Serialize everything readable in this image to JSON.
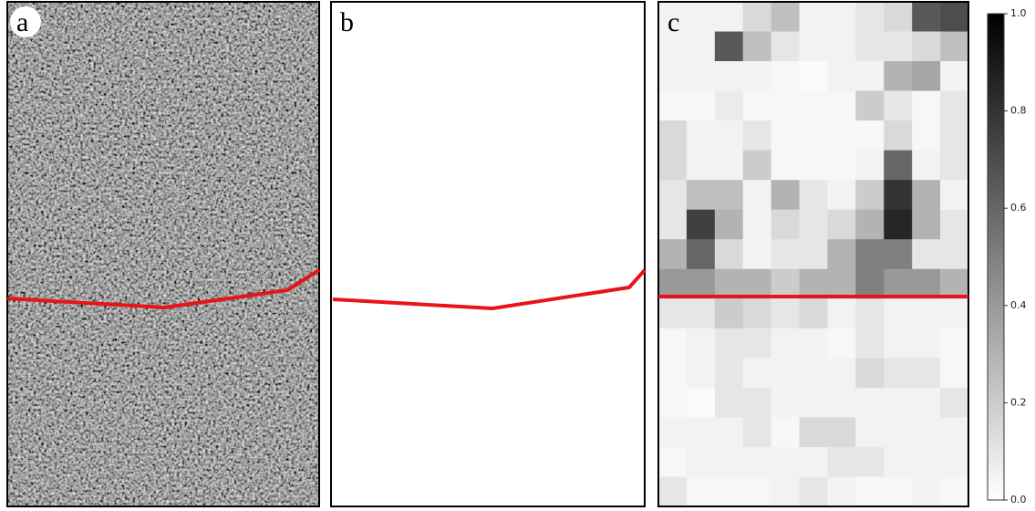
{
  "panels": [
    {
      "label": "a"
    },
    {
      "label": "b"
    },
    {
      "label": "c"
    }
  ],
  "chart_data": {
    "type": "heatmap",
    "values": [
      [
        0.05,
        0.05,
        0.05,
        0.15,
        0.25,
        0.05,
        0.05,
        0.1,
        0.15,
        0.65,
        0.7
      ],
      [
        0.05,
        0.05,
        0.65,
        0.25,
        0.1,
        0.05,
        0.05,
        0.1,
        0.1,
        0.15,
        0.25
      ],
      [
        0.05,
        0.05,
        0.05,
        0.05,
        0.03,
        0.02,
        0.05,
        0.05,
        0.3,
        0.35,
        0.05
      ],
      [
        0.03,
        0.03,
        0.08,
        0.03,
        0.03,
        0.03,
        0.03,
        0.2,
        0.1,
        0.03,
        0.1
      ],
      [
        0.15,
        0.05,
        0.05,
        0.1,
        0.03,
        0.03,
        0.03,
        0.03,
        0.15,
        0.03,
        0.1
      ],
      [
        0.15,
        0.05,
        0.05,
        0.2,
        0.03,
        0.03,
        0.03,
        0.05,
        0.6,
        0.05,
        0.1
      ],
      [
        0.1,
        0.25,
        0.25,
        0.05,
        0.3,
        0.1,
        0.05,
        0.2,
        0.8,
        0.3,
        0.05
      ],
      [
        0.1,
        0.75,
        0.3,
        0.05,
        0.15,
        0.1,
        0.15,
        0.3,
        0.85,
        0.3,
        0.1
      ],
      [
        0.3,
        0.6,
        0.15,
        0.05,
        0.1,
        0.1,
        0.3,
        0.5,
        0.5,
        0.1,
        0.1
      ],
      [
        0.4,
        0.4,
        0.3,
        0.3,
        0.2,
        0.3,
        0.3,
        0.5,
        0.4,
        0.4,
        0.3
      ],
      [
        0.1,
        0.1,
        0.2,
        0.15,
        0.1,
        0.15,
        0.05,
        0.1,
        0.05,
        0.05,
        0.05
      ],
      [
        0.03,
        0.05,
        0.1,
        0.1,
        0.05,
        0.05,
        0.03,
        0.1,
        0.05,
        0.05,
        0.03
      ],
      [
        0.03,
        0.05,
        0.1,
        0.05,
        0.05,
        0.05,
        0.05,
        0.15,
        0.1,
        0.1,
        0.03
      ],
      [
        0.03,
        0.02,
        0.1,
        0.1,
        0.05,
        0.05,
        0.05,
        0.05,
        0.05,
        0.05,
        0.1
      ],
      [
        0.05,
        0.05,
        0.05,
        0.1,
        0.03,
        0.15,
        0.15,
        0.05,
        0.05,
        0.05,
        0.05
      ],
      [
        0.03,
        0.05,
        0.05,
        0.05,
        0.05,
        0.05,
        0.1,
        0.1,
        0.05,
        0.05,
        0.05
      ],
      [
        0.1,
        0.03,
        0.03,
        0.03,
        0.05,
        0.1,
        0.05,
        0.03,
        0.03,
        0.05,
        0.03
      ]
    ],
    "zlim": [
      0,
      1
    ],
    "zticks": [
      {
        "value": 0,
        "label": "0.0"
      },
      {
        "value": 0.2,
        "label": "0.2"
      },
      {
        "value": 0.4,
        "label": "0.4"
      },
      {
        "value": 0.6,
        "label": "0.6"
      },
      {
        "value": 0.8,
        "label": "0.8"
      },
      {
        "value": 1,
        "label": "1.0"
      }
    ]
  }
}
